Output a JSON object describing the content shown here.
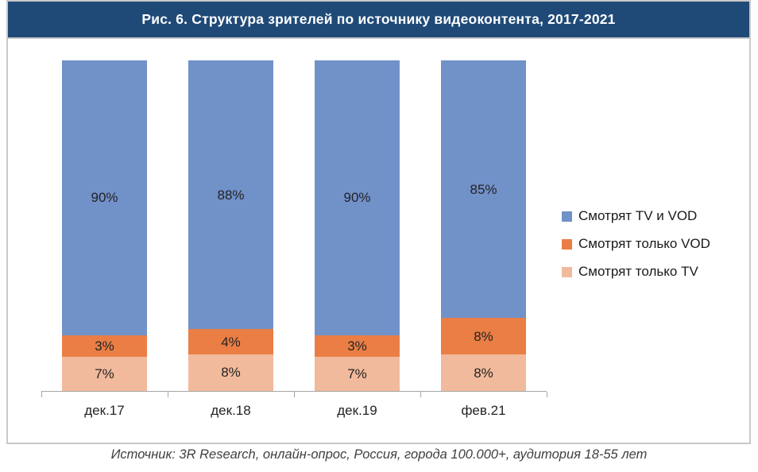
{
  "title": "Рис. 6. Структура зрителей по источнику видеоконтента, 2017-2021",
  "source_note": "Источник: 3R Research, онлайн-опрос, Россия, города 100.000+, аудитория 18-55 лет",
  "colors": {
    "header_bg": "#1F4A78",
    "title_text": "#FFFFFF",
    "frame_border": "#C9C9C9",
    "axis": "#A6A6A6",
    "label_text": "#232323",
    "series_tv_and_vod": "#7191C9",
    "series_vod_only": "#EA7E45",
    "series_tv_only": "#F2BA9C"
  },
  "chart_data": {
    "type": "bar",
    "subtype": "stacked-100-percent",
    "title": "Рис. 6. Структура зрителей по источнику видеоконтента, 2017-2021",
    "categories": [
      "дек.17",
      "дек.18",
      "дек.19",
      "фев.21"
    ],
    "series": [
      {
        "key": "tv-and-vod",
        "name": "Смотрят TV и VOD",
        "color": "#7191C9",
        "values": [
          90,
          88,
          90,
          85
        ],
        "labels": [
          "90%",
          "88%",
          "90%",
          "85%"
        ]
      },
      {
        "key": "vod-only",
        "name": "Смотрят только VOD",
        "color": "#EA7E45",
        "values": [
          3,
          4,
          3,
          8
        ],
        "labels": [
          "3%",
          "4%",
          "3%",
          "8%"
        ]
      },
      {
        "key": "tv-only",
        "name": "Смотрят только TV",
        "color": "#F2BA9C",
        "values": [
          7,
          8,
          7,
          8
        ],
        "labels": [
          "7%",
          "8%",
          "7%",
          "8%"
        ]
      }
    ],
    "xlabel": "",
    "ylabel": "",
    "ylim": [
      0,
      100
    ],
    "grid": false,
    "legend_position": "right",
    "stack_order_top_to_bottom": [
      "Смотрят TV и VOD",
      "Смотрят только VOD",
      "Смотрят только TV"
    ]
  }
}
